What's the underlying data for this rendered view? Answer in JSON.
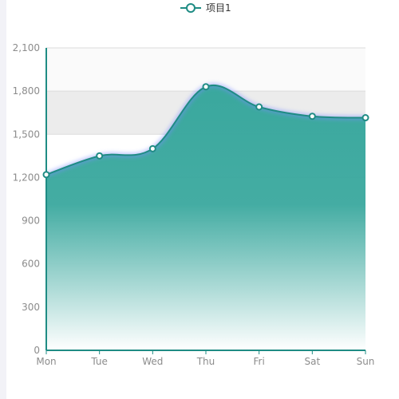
{
  "legend": {
    "label": "项目1",
    "icon": "circle-line-legend-icon"
  },
  "colors": {
    "line": "#1f8c84",
    "area_top": "#3aa89e",
    "area_bottom": "#ffffff",
    "point_fill": "#ffffff",
    "band": "#ececec",
    "band_light": "#fafafa",
    "axis": "#1f8c84",
    "grid": "#dcdcdc",
    "tick_text": "#8c8c8c"
  },
  "chart_data": {
    "type": "area",
    "smooth": true,
    "categories": [
      "Mon",
      "Tue",
      "Wed",
      "Thu",
      "Fri",
      "Sat",
      "Sun"
    ],
    "series": [
      {
        "name": "项目1",
        "values": [
          1220,
          1350,
          1400,
          1830,
          1690,
          1625,
          1615
        ]
      }
    ],
    "yticks": [
      "0",
      "300",
      "600",
      "900",
      "1,200",
      "1,500",
      "1,800",
      "2,100"
    ],
    "ylim": [
      0,
      2100
    ],
    "grid": true,
    "legend_position": "top-center",
    "split_area": true
  }
}
